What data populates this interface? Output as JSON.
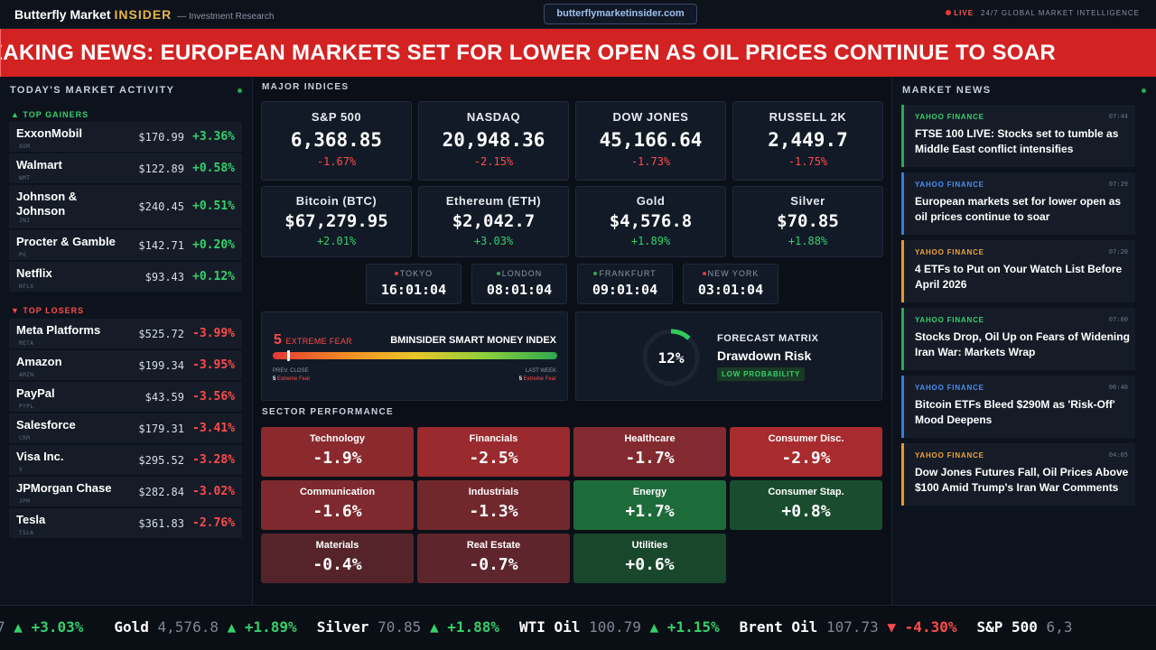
{
  "header": {
    "brand": "Butterfly Market",
    "brand_accent": "INSIDER",
    "subtitle": "— Investment Research",
    "url": "butterflymarketinsider.com",
    "live_label": "LIVE",
    "live_text": "24/7 GLOBAL MARKET INTELLIGENCE"
  },
  "breaking": {
    "text": "EAKING NEWS: EUROPEAN MARKETS SET FOR LOWER OPEN AS OIL PRICES CONTINUE TO SOAR"
  },
  "left": {
    "title": "TODAY'S MARKET ACTIVITY",
    "gainers_label": "▲ TOP GAINERS",
    "losers_label": "▼ TOP LOSERS",
    "gainers": [
      {
        "name": "ExxonMobil",
        "ticker": "XOM",
        "price": "$170.99",
        "change": "+3.36%"
      },
      {
        "name": "Walmart",
        "ticker": "WMT",
        "price": "$122.89",
        "change": "+0.58%"
      },
      {
        "name": "Johnson & Johnson",
        "ticker": "JNJ",
        "price": "$240.45",
        "change": "+0.51%"
      },
      {
        "name": "Procter & Gamble",
        "ticker": "PG",
        "price": "$142.71",
        "change": "+0.20%"
      },
      {
        "name": "Netflix",
        "ticker": "NFLX",
        "price": "$93.43",
        "change": "+0.12%"
      }
    ],
    "losers": [
      {
        "name": "Meta Platforms",
        "ticker": "META",
        "price": "$525.72",
        "change": "-3.99%"
      },
      {
        "name": "Amazon",
        "ticker": "AMZN",
        "price": "$199.34",
        "change": "-3.95%"
      },
      {
        "name": "PayPal",
        "ticker": "PYPL",
        "price": "$43.59",
        "change": "-3.56%"
      },
      {
        "name": "Salesforce",
        "ticker": "CRM",
        "price": "$179.31",
        "change": "-3.41%"
      },
      {
        "name": "Visa Inc.",
        "ticker": "V",
        "price": "$295.52",
        "change": "-3.28%"
      },
      {
        "name": "JPMorgan Chase",
        "ticker": "JPM",
        "price": "$282.84",
        "change": "-3.02%"
      },
      {
        "name": "Tesla",
        "ticker": "TSLA",
        "price": "$361.83",
        "change": "-2.76%"
      }
    ]
  },
  "indices": {
    "title": "MAJOR INDICES",
    "items": [
      {
        "name": "S&P 500",
        "value": "6,368.85",
        "change": "-1.67%",
        "dir": "dn"
      },
      {
        "name": "NASDAQ",
        "value": "20,948.36",
        "change": "-2.15%",
        "dir": "dn"
      },
      {
        "name": "DOW JONES",
        "value": "45,166.64",
        "change": "-1.73%",
        "dir": "dn"
      },
      {
        "name": "RUSSELL 2K",
        "value": "2,449.7",
        "change": "-1.75%",
        "dir": "dn"
      },
      {
        "name": "Bitcoin (BTC)",
        "value": "$67,279.95",
        "change": "+2.01%",
        "dir": "up"
      },
      {
        "name": "Ethereum (ETH)",
        "value": "$2,042.7",
        "change": "+3.03%",
        "dir": "up"
      },
      {
        "name": "Gold",
        "value": "$4,576.8",
        "change": "+1.89%",
        "dir": "up"
      },
      {
        "name": "Silver",
        "value": "$70.85",
        "change": "+1.88%",
        "dir": "up"
      }
    ]
  },
  "clocks": [
    {
      "city": "TOKYO",
      "time": "16:01:04",
      "color": "#e53935"
    },
    {
      "city": "LONDON",
      "time": "08:01:04",
      "color": "#2ea84f"
    },
    {
      "city": "FRANKFURT",
      "time": "09:01:04",
      "color": "#2ea84f"
    },
    {
      "city": "NEW YORK",
      "time": "03:01:04",
      "color": "#e53935"
    }
  ],
  "smart_money": {
    "value": "5",
    "label": "EXTREME FEAR",
    "title": "BMINSIDER SMART MONEY INDEX",
    "level": 0.05,
    "prev_label": "PREV. CLOSE",
    "prev_value": "5",
    "prev_text": "Extreme Fear",
    "week_label": "LAST WEEK",
    "week_value": "5",
    "week_text": "Extreme Fear"
  },
  "forecast": {
    "percent": "12%",
    "level": 0.12,
    "kicker": "FORECAST MATRIX",
    "title": "Drawdown Risk",
    "badge": "LOW PROBABILITY"
  },
  "sectors": {
    "title": "SECTOR PERFORMANCE",
    "items": [
      {
        "name": "Technology",
        "value": "-1.9%",
        "color": "#8a2a2f"
      },
      {
        "name": "Financials",
        "value": "-2.5%",
        "color": "#9a2a2d"
      },
      {
        "name": "Healthcare",
        "value": "-1.7%",
        "color": "#822a2f"
      },
      {
        "name": "Consumer Disc.",
        "value": "-2.9%",
        "color": "#a82b2e"
      },
      {
        "name": "Communication",
        "value": "-1.6%",
        "color": "#7d292e"
      },
      {
        "name": "Industrials",
        "value": "-1.3%",
        "color": "#71282d"
      },
      {
        "name": "Energy",
        "value": "+1.7%",
        "color": "#1e6b3a"
      },
      {
        "name": "Consumer Stap.",
        "value": "+0.8%",
        "color": "#1a4d2e"
      },
      {
        "name": "Materials",
        "value": "-0.4%",
        "color": "#55242b"
      },
      {
        "name": "Real Estate",
        "value": "-0.7%",
        "color": "#5e252c"
      },
      {
        "name": "Utilities",
        "value": "+0.6%",
        "color": "#19472b"
      }
    ]
  },
  "news": {
    "title": "MARKET NEWS",
    "items": [
      {
        "source": "YAHOO FINANCE",
        "time": "07:44",
        "headline": "FTSE 100 LIVE: Stocks set to tumble as Middle East conflict intensifies",
        "color": "#2ea84f",
        "src_color": "#35d06a"
      },
      {
        "source": "YAHOO FINANCE",
        "time": "07:29",
        "headline": "European markets set for lower open as oil prices continue to soar",
        "color": "#3a7bd5",
        "src_color": "#4a8ff0"
      },
      {
        "source": "YAHOO FINANCE",
        "time": "07:20",
        "headline": "4 ETFs to Put on Your Watch List Before April 2026",
        "color": "#e8962a",
        "src_color": "#f0a23a"
      },
      {
        "source": "YAHOO FINANCE",
        "time": "07:00",
        "headline": "Stocks Drop, Oil Up on Fears of Widening Iran War: Markets Wrap",
        "color": "#2ea84f",
        "src_color": "#35d06a"
      },
      {
        "source": "YAHOO FINANCE",
        "time": "06:40",
        "headline": "Bitcoin ETFs Bleed $290M as 'Risk-Off' Mood Deepens",
        "color": "#3a7bd5",
        "src_color": "#4a8ff0"
      },
      {
        "source": "YAHOO FINANCE",
        "time": "04:05",
        "headline": "Dow Jones Futures Fall, Oil Prices Above $100 Amid Trump's Iran War Comments",
        "color": "#e8962a",
        "src_color": "#f0a23a"
      }
    ]
  },
  "ticker": [
    {
      "name": "",
      "price": "7",
      "arrow": "▲",
      "change": "+3.03%",
      "dir": "up"
    },
    {
      "name": "Gold",
      "price": "4,576.8",
      "arrow": "▲",
      "change": "+1.89%",
      "dir": "up"
    },
    {
      "name": "Silver",
      "price": "70.85",
      "arrow": "▲",
      "change": "+1.88%",
      "dir": "up"
    },
    {
      "name": "WTI Oil",
      "price": "100.79",
      "arrow": "▲",
      "change": "+1.15%",
      "dir": "up"
    },
    {
      "name": "Brent Oil",
      "price": "107.73",
      "arrow": "▼",
      "change": "-4.30%",
      "dir": "dn"
    },
    {
      "name": "S&P 500",
      "price": "6,3",
      "arrow": "",
      "change": "",
      "dir": "dn"
    }
  ]
}
